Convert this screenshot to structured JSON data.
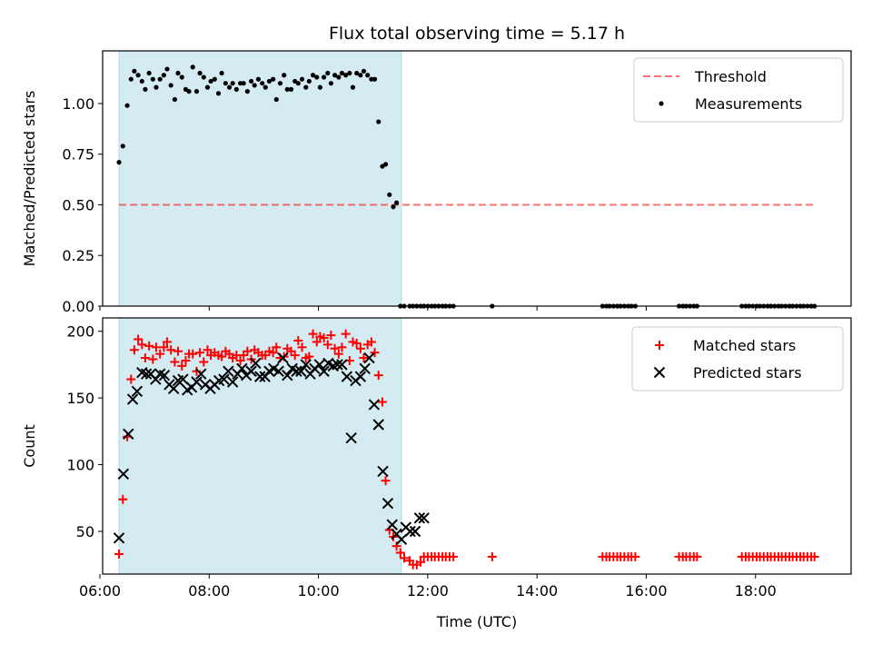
{
  "title": "Flux total observing time = 5.17 h",
  "colors": {
    "shade": "#add8e6",
    "threshold": "#ff0000",
    "measurement": "#000000",
    "matched": "#ff0000",
    "predicted": "#000000"
  },
  "chart_data": [
    {
      "type": "scatter",
      "ylabel": "Matched/Predicted stars",
      "xlabel": "",
      "xlim": [
        6.05,
        19.75
      ],
      "ylim": [
        0,
        1.26
      ],
      "xticks": [
        6,
        8,
        10,
        12,
        14,
        16,
        18
      ],
      "xtick_labels": [],
      "yticks": [
        0,
        0.25,
        0.5,
        0.75,
        1.0
      ],
      "ytick_labels": [
        "0.00",
        "0.25",
        "0.50",
        "0.75",
        "1.00"
      ],
      "shaded_span": [
        6.35,
        11.52
      ],
      "legend": {
        "position": "upper right",
        "entries": [
          {
            "label": "Threshold",
            "marker": "dashed-line",
            "color": "#ff0000"
          },
          {
            "label": "Measurements",
            "marker": "dot",
            "color": "#000000"
          }
        ]
      },
      "threshold": {
        "value": 0.5,
        "x": [
          6.35,
          19.1
        ]
      },
      "series": [
        {
          "name": "Measurements",
          "marker": "dot",
          "x": [
            6.35,
            6.42,
            6.5,
            6.57,
            6.63,
            6.7,
            6.77,
            6.83,
            6.9,
            6.97,
            7.03,
            7.1,
            7.17,
            7.23,
            7.3,
            7.37,
            7.43,
            7.5,
            7.57,
            7.63,
            7.7,
            7.77,
            7.83,
            7.9,
            7.97,
            8.03,
            8.1,
            8.17,
            8.23,
            8.3,
            8.37,
            8.43,
            8.5,
            8.57,
            8.63,
            8.7,
            8.77,
            8.83,
            8.9,
            8.97,
            9.03,
            9.1,
            9.17,
            9.23,
            9.3,
            9.37,
            9.43,
            9.5,
            9.57,
            9.63,
            9.7,
            9.77,
            9.83,
            9.9,
            9.97,
            10.03,
            10.1,
            10.17,
            10.23,
            10.3,
            10.37,
            10.43,
            10.5,
            10.57,
            10.63,
            10.7,
            10.77,
            10.83,
            10.9,
            10.97,
            11.03,
            11.1,
            11.17,
            11.23,
            11.3,
            11.37,
            11.43,
            11.5,
            11.57,
            11.67,
            11.73,
            11.8,
            11.87,
            11.93,
            12.0,
            12.07,
            12.13,
            12.2,
            12.27,
            12.33,
            12.4,
            12.47,
            13.18,
            15.2,
            15.27,
            15.33,
            15.4,
            15.47,
            15.53,
            15.6,
            15.67,
            15.73,
            15.8,
            16.6,
            16.67,
            16.73,
            16.8,
            16.87,
            16.93,
            17.75,
            17.82,
            17.88,
            17.95,
            18.02,
            18.08,
            18.15,
            18.22,
            18.28,
            18.35,
            18.42,
            18.48,
            18.55,
            18.62,
            18.68,
            18.75,
            18.82,
            18.88,
            18.95,
            19.02,
            19.08
          ],
          "values": [
            0.71,
            0.79,
            0.99,
            1.12,
            1.16,
            1.14,
            1.11,
            1.07,
            1.15,
            1.12,
            1.08,
            1.12,
            1.14,
            1.17,
            1.09,
            1.02,
            1.15,
            1.13,
            1.07,
            1.06,
            1.18,
            1.06,
            1.15,
            1.13,
            1.08,
            1.11,
            1.12,
            1.05,
            1.15,
            1.1,
            1.08,
            1.1,
            1.07,
            1.1,
            1.1,
            1.06,
            1.11,
            1.09,
            1.12,
            1.1,
            1.08,
            1.11,
            1.12,
            1.02,
            1.1,
            1.14,
            1.07,
            1.07,
            1.11,
            1.1,
            1.12,
            1.08,
            1.11,
            1.14,
            1.13,
            1.08,
            1.13,
            1.15,
            1.1,
            1.14,
            1.13,
            1.15,
            1.14,
            1.15,
            1.08,
            1.15,
            1.14,
            1.16,
            1.14,
            1.12,
            1.12,
            0.91,
            0.69,
            0.7,
            0.55,
            0.49,
            0.51,
            0.0,
            0.0,
            0.0,
            0.0,
            0.0,
            0.0,
            0.0,
            0.0,
            0.0,
            0.0,
            0.0,
            0.0,
            0.0,
            0.0,
            0.0,
            0.0,
            0.0,
            0.0,
            0.0,
            0.0,
            0.0,
            0.0,
            0.0,
            0.0,
            0.0,
            0.0,
            0.0,
            0.0,
            0.0,
            0.0,
            0.0,
            0.0,
            0.0,
            0.0,
            0.0,
            0.0,
            0.0,
            0.0,
            0.0,
            0.0,
            0.0,
            0.0,
            0.0,
            0.0,
            0.0,
            0.0,
            0.0,
            0.0,
            0.0,
            0.0,
            0.0,
            0.0,
            0.0
          ]
        }
      ]
    },
    {
      "type": "scatter",
      "ylabel": "Count",
      "xlabel": "Time (UTC)",
      "xlim": [
        6.05,
        19.75
      ],
      "ylim": [
        18,
        210
      ],
      "xticks": [
        6,
        8,
        10,
        12,
        14,
        16,
        18
      ],
      "xtick_labels": [
        "06:00",
        "08:00",
        "10:00",
        "12:00",
        "14:00",
        "16:00",
        "18:00"
      ],
      "yticks": [
        50,
        100,
        150,
        200
      ],
      "ytick_labels": [
        "50",
        "100",
        "150",
        "200"
      ],
      "shaded_span": [
        6.35,
        11.52
      ],
      "legend": {
        "position": "upper right",
        "entries": [
          {
            "label": "Matched stars",
            "marker": "plus",
            "color": "#ff0000"
          },
          {
            "label": "Predicted stars",
            "marker": "x",
            "color": "#000000"
          }
        ]
      },
      "series": [
        {
          "name": "Matched stars",
          "marker": "plus",
          "x": [
            6.35,
            6.42,
            6.5,
            6.57,
            6.63,
            6.7,
            6.77,
            6.83,
            6.9,
            6.97,
            7.03,
            7.1,
            7.17,
            7.23,
            7.3,
            7.37,
            7.43,
            7.5,
            7.57,
            7.63,
            7.7,
            7.77,
            7.83,
            7.9,
            7.97,
            8.03,
            8.1,
            8.17,
            8.23,
            8.3,
            8.37,
            8.43,
            8.5,
            8.57,
            8.63,
            8.7,
            8.77,
            8.83,
            8.9,
            8.97,
            9.03,
            9.1,
            9.17,
            9.23,
            9.3,
            9.37,
            9.43,
            9.5,
            9.57,
            9.63,
            9.7,
            9.77,
            9.83,
            9.9,
            9.97,
            10.03,
            10.1,
            10.17,
            10.23,
            10.3,
            10.37,
            10.43,
            10.5,
            10.57,
            10.63,
            10.7,
            10.77,
            10.83,
            10.9,
            10.97,
            11.03,
            11.1,
            11.17,
            11.23,
            11.3,
            11.37,
            11.43,
            11.5,
            11.57,
            11.67,
            11.73,
            11.8,
            11.87,
            11.93,
            12.0,
            12.07,
            12.13,
            12.2,
            12.27,
            12.33,
            12.4,
            12.47,
            13.18,
            15.2,
            15.27,
            15.33,
            15.4,
            15.47,
            15.53,
            15.6,
            15.67,
            15.73,
            15.8,
            16.6,
            16.67,
            16.73,
            16.8,
            16.87,
            16.93,
            17.75,
            17.82,
            17.88,
            17.95,
            18.02,
            18.08,
            18.15,
            18.22,
            18.28,
            18.35,
            18.42,
            18.48,
            18.55,
            18.62,
            18.68,
            18.75,
            18.82,
            18.88,
            18.95,
            19.02,
            19.08
          ],
          "values": [
            33,
            74,
            121,
            164,
            186,
            194,
            190,
            180,
            189,
            179,
            188,
            183,
            188,
            192,
            186,
            177,
            185,
            174,
            178,
            183,
            183,
            170,
            184,
            177,
            186,
            182,
            184,
            182,
            181,
            185,
            183,
            180,
            182,
            178,
            182,
            185,
            179,
            186,
            184,
            182,
            182,
            185,
            184,
            188,
            180,
            181,
            187,
            185,
            182,
            193,
            188,
            180,
            181,
            198,
            192,
            196,
            195,
            190,
            197,
            187,
            183,
            188,
            198,
            178,
            192,
            191,
            187,
            180,
            190,
            192,
            184,
            167,
            147,
            88,
            51,
            46,
            39,
            34,
            30,
            28,
            25,
            25,
            27,
            31,
            31,
            31,
            31,
            31,
            31,
            31,
            31,
            31,
            31,
            31,
            31,
            31,
            31,
            31,
            31,
            31,
            31,
            31,
            31,
            31,
            31,
            31,
            31,
            31,
            31,
            31,
            31,
            31,
            31,
            31,
            31,
            31,
            31,
            31,
            31,
            31,
            31,
            31,
            31,
            31,
            31,
            31,
            31,
            31,
            31,
            31
          ]
        },
        {
          "name": "Predicted stars",
          "marker": "x",
          "x": [
            6.35,
            6.43,
            6.52,
            6.6,
            6.68,
            6.77,
            6.85,
            6.93,
            7.02,
            7.1,
            7.18,
            7.27,
            7.35,
            7.43,
            7.52,
            7.6,
            7.68,
            7.77,
            7.85,
            7.93,
            8.02,
            8.1,
            8.18,
            8.27,
            8.35,
            8.43,
            8.52,
            8.6,
            8.68,
            8.77,
            8.85,
            8.93,
            9.02,
            9.1,
            9.18,
            9.27,
            9.35,
            9.43,
            9.52,
            9.6,
            9.68,
            9.77,
            9.85,
            9.93,
            10.02,
            10.1,
            10.18,
            10.27,
            10.35,
            10.43,
            10.52,
            10.6,
            10.68,
            10.77,
            10.85,
            10.93,
            11.02,
            11.1,
            11.18,
            11.27,
            11.35,
            11.43,
            11.52,
            11.6,
            11.68,
            11.77,
            11.85,
            11.93
          ],
          "values": [
            45,
            93,
            123,
            149,
            155,
            169,
            168,
            168,
            164,
            168,
            167,
            160,
            157,
            163,
            164,
            156,
            158,
            162,
            168,
            160,
            157,
            160,
            163,
            164,
            170,
            162,
            168,
            172,
            167,
            170,
            176,
            166,
            166,
            170,
            172,
            170,
            180,
            167,
            172,
            170,
            170,
            175,
            168,
            172,
            175,
            170,
            176,
            174,
            175,
            175,
            166,
            120,
            163,
            166,
            172,
            180,
            145,
            130,
            95,
            71,
            55,
            48,
            44,
            53,
            50,
            50,
            60,
            60
          ]
        }
      ]
    }
  ]
}
